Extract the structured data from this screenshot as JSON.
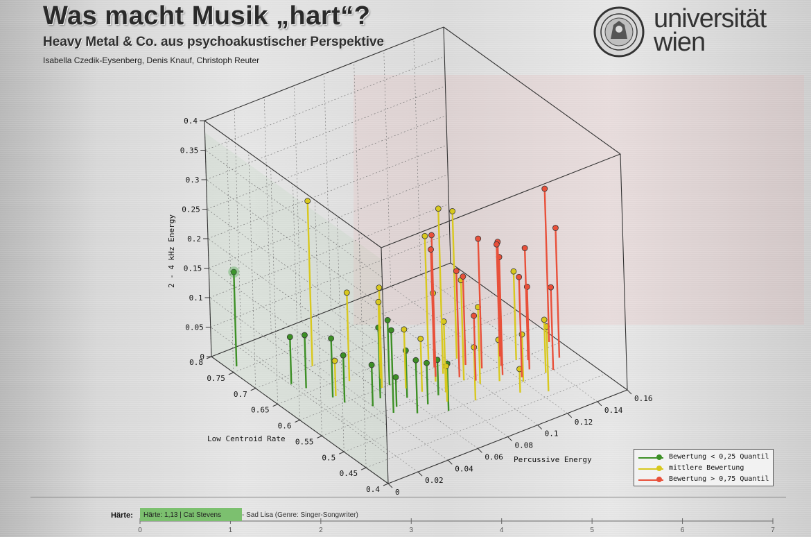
{
  "header": {
    "title": "Was macht Musik „hart“?",
    "subtitle": "Heavy Metal & Co. aus psychoakustischer Perspektive",
    "authors": "Isabella Czedik-Eysenberg, Denis Knauf, Christoph Reuter"
  },
  "logo": {
    "line1": "universität",
    "line2": "wien"
  },
  "chart_data": {
    "type": "scatter",
    "variant": "3d-stem",
    "xlabel": "Percussive Energy",
    "ylabel": "Low Centroid Rate",
    "zlabel": "2 - 4 kHz Energy",
    "x_range": [
      0,
      0.16
    ],
    "y_range": [
      0.4,
      0.8
    ],
    "z_range": [
      0,
      0.4
    ],
    "x_ticks": [
      "0",
      "0.02",
      "0.04",
      "0.06",
      "0.08",
      "0.1",
      "0.12",
      "0.14",
      "0.16"
    ],
    "y_ticks": [
      "0.4",
      "0.45",
      "0.5",
      "0.55",
      "0.6",
      "0.65",
      "0.7",
      "0.75",
      "0.8"
    ],
    "z_ticks": [
      "0",
      "0.05",
      "0.1",
      "0.15",
      "0.2",
      "0.25",
      "0.3",
      "0.35",
      "0.4"
    ],
    "grid": true,
    "legend_position": "bottom-right",
    "series": [
      {
        "name": "Bewertung < 0,25 Quantil",
        "color": "#3c8f25",
        "points": [
          {
            "x": 0.005,
            "y": 0.76,
            "z": 0.16
          },
          {
            "x": 0.018,
            "y": 0.68,
            "z": 0.08
          },
          {
            "x": 0.022,
            "y": 0.66,
            "z": 0.09
          },
          {
            "x": 0.028,
            "y": 0.62,
            "z": 0.1
          },
          {
            "x": 0.03,
            "y": 0.6,
            "z": 0.08
          },
          {
            "x": 0.04,
            "y": 0.57,
            "z": 0.07
          },
          {
            "x": 0.045,
            "y": 0.54,
            "z": 0.14
          },
          {
            "x": 0.048,
            "y": 0.58,
            "z": 0.12
          },
          {
            "x": 0.05,
            "y": 0.55,
            "z": 0.05
          },
          {
            "x": 0.055,
            "y": 0.52,
            "z": 0.09
          },
          {
            "x": 0.06,
            "y": 0.56,
            "z": 0.08
          },
          {
            "x": 0.06,
            "y": 0.6,
            "z": 0.11
          },
          {
            "x": 0.065,
            "y": 0.53,
            "z": 0.07
          },
          {
            "x": 0.07,
            "y": 0.5,
            "z": 0.08
          },
          {
            "x": 0.075,
            "y": 0.54,
            "z": 0.06
          }
        ]
      },
      {
        "name": "mittlere Bewertung",
        "color": "#d8c81e",
        "points": [
          {
            "x": 0.03,
            "y": 0.62,
            "z": 0.06
          },
          {
            "x": 0.038,
            "y": 0.7,
            "z": 0.28
          },
          {
            "x": 0.045,
            "y": 0.64,
            "z": 0.15
          },
          {
            "x": 0.055,
            "y": 0.6,
            "z": 0.17
          },
          {
            "x": 0.06,
            "y": 0.62,
            "z": 0.13
          },
          {
            "x": 0.065,
            "y": 0.58,
            "z": 0.1
          },
          {
            "x": 0.07,
            "y": 0.56,
            "z": 0.09
          },
          {
            "x": 0.075,
            "y": 0.52,
            "z": 0.06
          },
          {
            "x": 0.08,
            "y": 0.54,
            "z": 0.12
          },
          {
            "x": 0.082,
            "y": 0.57,
            "z": 0.15
          },
          {
            "x": 0.088,
            "y": 0.5,
            "z": 0.09
          },
          {
            "x": 0.09,
            "y": 0.58,
            "z": 0.28
          },
          {
            "x": 0.092,
            "y": 0.62,
            "z": 0.21
          },
          {
            "x": 0.095,
            "y": 0.55,
            "z": 0.17
          },
          {
            "x": 0.1,
            "y": 0.53,
            "z": 0.13
          },
          {
            "x": 0.105,
            "y": 0.6,
            "z": 0.25
          },
          {
            "x": 0.11,
            "y": 0.52,
            "z": 0.07
          },
          {
            "x": 0.112,
            "y": 0.48,
            "z": 0.04
          },
          {
            "x": 0.12,
            "y": 0.5,
            "z": 0.08
          },
          {
            "x": 0.125,
            "y": 0.46,
            "z": 0.11
          },
          {
            "x": 0.13,
            "y": 0.55,
            "z": 0.15
          },
          {
            "x": 0.135,
            "y": 0.5,
            "z": 0.09
          }
        ]
      },
      {
        "name": "Bewertung > 0,75 Quantil",
        "color": "#e8503a",
        "points": [
          {
            "x": 0.085,
            "y": 0.58,
            "z": 0.24
          },
          {
            "x": 0.09,
            "y": 0.6,
            "z": 0.2
          },
          {
            "x": 0.095,
            "y": 0.56,
            "z": 0.18
          },
          {
            "x": 0.1,
            "y": 0.54,
            "z": 0.11
          },
          {
            "x": 0.105,
            "y": 0.58,
            "z": 0.15
          },
          {
            "x": 0.11,
            "y": 0.56,
            "z": 0.22
          },
          {
            "x": 0.115,
            "y": 0.53,
            "z": 0.2
          },
          {
            "x": 0.12,
            "y": 0.55,
            "z": 0.21
          },
          {
            "x": 0.122,
            "y": 0.51,
            "z": 0.17
          },
          {
            "x": 0.125,
            "y": 0.57,
            "z": 0.19
          },
          {
            "x": 0.13,
            "y": 0.52,
            "z": 0.14
          },
          {
            "x": 0.135,
            "y": 0.54,
            "z": 0.19
          },
          {
            "x": 0.14,
            "y": 0.5,
            "z": 0.14
          },
          {
            "x": 0.15,
            "y": 0.52,
            "z": 0.22
          },
          {
            "x": 0.155,
            "y": 0.56,
            "z": 0.26
          }
        ]
      }
    ]
  },
  "footer": {
    "scale_label": "Härte:",
    "selected_text": "Härte: 1,13  |  Cat Stevens",
    "rest_text": "- Sad Lisa (Genre: Singer-Songwriter)",
    "selected_value": 1.13,
    "scale_min": 0,
    "scale_max": 7,
    "scale_ticks": [
      "0",
      "1",
      "2",
      "3",
      "4",
      "5",
      "6",
      "7"
    ]
  }
}
